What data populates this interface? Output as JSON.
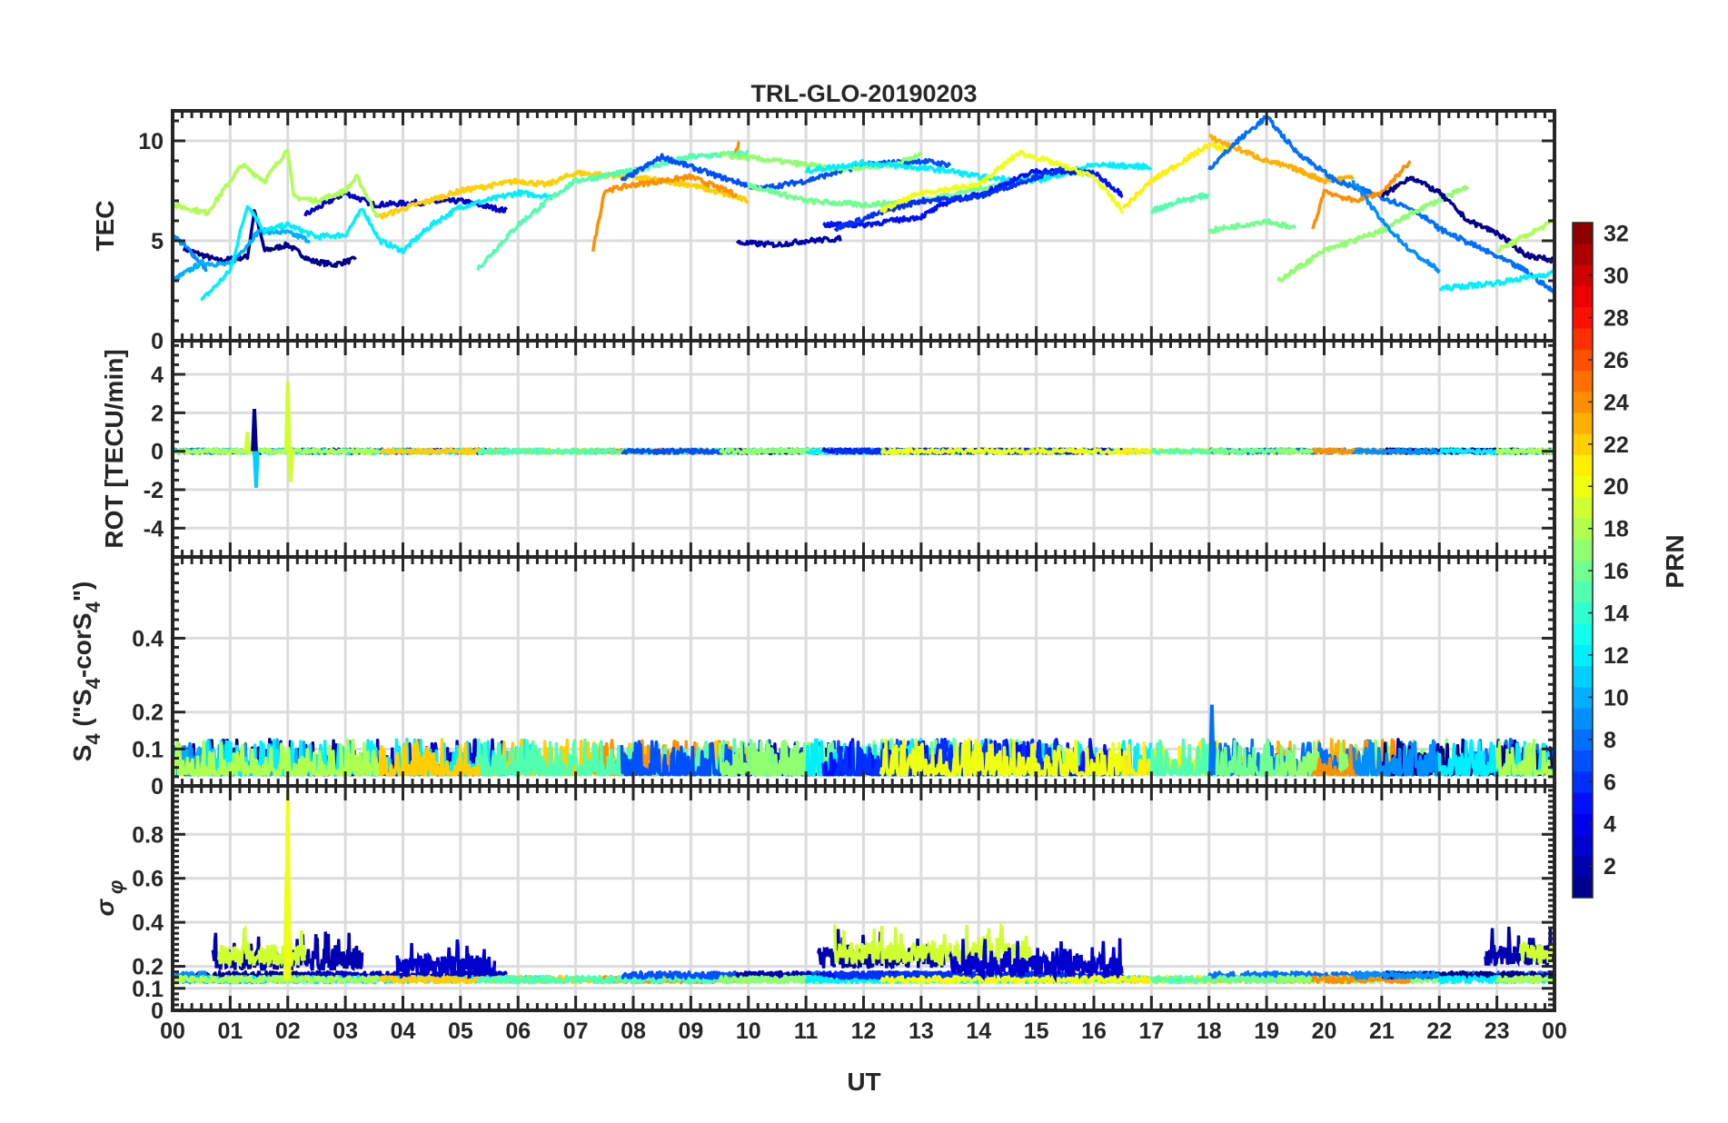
{
  "chart_data": {
    "type": "line",
    "title": "TRL-GLO-20190203",
    "xlabel": "UT",
    "xlim": [
      0,
      24
    ],
    "xticks": [
      "00",
      "01",
      "02",
      "03",
      "04",
      "05",
      "06",
      "07",
      "08",
      "09",
      "10",
      "11",
      "12",
      "13",
      "14",
      "15",
      "16",
      "17",
      "18",
      "19",
      "20",
      "21",
      "22",
      "23",
      "00"
    ],
    "grid": true,
    "colorbar": {
      "label": "PRN",
      "range": [
        1,
        32
      ],
      "levels": 32,
      "colormap": "jet",
      "ticks": [
        "2",
        "4",
        "6",
        "8",
        "10",
        "12",
        "14",
        "16",
        "18",
        "20",
        "22",
        "24",
        "26",
        "28",
        "30",
        "32"
      ],
      "placement": "right"
    },
    "panels": [
      {
        "id": "tec",
        "ylabel": "TEC",
        "ylim": [
          0,
          11.5
        ],
        "yticks": [
          {
            "v": 0,
            "t": "0"
          },
          {
            "v": 5,
            "t": "5"
          },
          {
            "v": 10,
            "t": "10"
          }
        ]
      },
      {
        "id": "rot",
        "ylabel": "ROT [TECU/min]",
        "ylim": [
          -5.5,
          5.75
        ],
        "yticks": [
          {
            "v": -4,
            "t": "-4"
          },
          {
            "v": -2,
            "t": "-2"
          },
          {
            "v": 0,
            "t": "0"
          },
          {
            "v": 2,
            "t": "2"
          },
          {
            "v": 4,
            "t": "4"
          }
        ],
        "noise": 0.12,
        "spikes": [
          {
            "x": 1.42,
            "amp": 2.2,
            "prn": 1
          },
          {
            "x": 1.45,
            "amp": -1.9,
            "prn": 11
          },
          {
            "x": 2.0,
            "amp": 3.6,
            "prn": 19
          },
          {
            "x": 2.05,
            "amp": -1.6,
            "prn": 19
          },
          {
            "x": 1.3,
            "amp": 1.0,
            "prn": 19
          }
        ]
      },
      {
        "id": "s4",
        "ylabel": "S4 (\"S4-corS4\")",
        "ylabel_main": "S",
        "ylabel_sub": "4",
        "ylabel_rest": " (\"S",
        "ylabel_sub2": "4",
        "ylabel_mid": "-corS",
        "ylabel_sub3": "4",
        "ylabel_end": "\")",
        "ylim": [
          0,
          0.62
        ],
        "yticks": [
          {
            "v": 0,
            "t": "0"
          },
          {
            "v": 0.1,
            "t": "0.1"
          },
          {
            "v": 0.2,
            "t": "0.2"
          },
          {
            "v": 0.4,
            "t": "0.4"
          }
        ],
        "base": 0.03,
        "noise": 0.06,
        "spikes": [
          {
            "x": 18.05,
            "amp": 0.22,
            "prn": 8
          }
        ]
      },
      {
        "id": "sigma",
        "ylabel": "σφ",
        "ylabel_main": "σ",
        "ylabel_sub": "φ",
        "ylim": [
          0,
          1.02
        ],
        "yticks": [
          {
            "v": 0,
            "t": "0"
          },
          {
            "v": 0.1,
            "t": "0.1"
          },
          {
            "v": 0.2,
            "t": "0.2"
          },
          {
            "v": 0.4,
            "t": "0.4"
          },
          {
            "v": 0.6,
            "t": "0.6"
          },
          {
            "v": 0.8,
            "t": "0.8"
          }
        ],
        "base": 0.14,
        "noise": 0.03,
        "spikes": [
          {
            "x": 1.98,
            "amp": 0.63,
            "prn": 19
          },
          {
            "x": 2.0,
            "amp": 1.0,
            "prn": 20
          }
        ],
        "bursts": [
          {
            "from": 0.7,
            "to": 3.3,
            "prn": 2,
            "level": 0.23
          },
          {
            "from": 0.8,
            "to": 2.3,
            "prn": 19,
            "level": 0.25
          },
          {
            "from": 3.9,
            "to": 5.6,
            "prn": 3,
            "level": 0.2
          },
          {
            "from": 11.2,
            "to": 13.4,
            "prn": 2,
            "level": 0.24
          },
          {
            "from": 11.5,
            "to": 14.9,
            "prn": 19,
            "level": 0.26
          },
          {
            "from": 13.5,
            "to": 16.5,
            "prn": 3,
            "level": 0.2
          },
          {
            "from": 22.8,
            "to": 24,
            "prn": 2,
            "level": 0.25
          },
          {
            "from": 23.4,
            "to": 24,
            "prn": 19,
            "level": 0.26
          }
        ]
      }
    ],
    "series": [
      {
        "prn": 1,
        "points": [
          [
            0.2,
            4.6
          ],
          [
            0.8,
            4
          ],
          [
            1.3,
            4.2
          ],
          [
            1.42,
            6.5
          ],
          [
            1.6,
            4.5
          ],
          [
            2,
            4.8
          ],
          [
            2.4,
            4
          ],
          [
            2.8,
            3.8
          ],
          [
            3.2,
            4.1
          ]
        ]
      },
      {
        "prn": 3,
        "points": [
          [
            2.3,
            6.3
          ],
          [
            3,
            7.4
          ],
          [
            3.5,
            6.8
          ],
          [
            4.2,
            6.9
          ],
          [
            5,
            7
          ],
          [
            5.8,
            6.5
          ]
        ]
      },
      {
        "prn": 9,
        "points": [
          [
            0,
            5.3
          ],
          [
            0.3,
            4.5
          ],
          [
            0.6,
            3.5
          ]
        ]
      },
      {
        "prn": 10,
        "points": [
          [
            0,
            3
          ],
          [
            0.5,
            3.9
          ],
          [
            1,
            3.8
          ],
          [
            1.5,
            5.5
          ],
          [
            2,
            5.4
          ],
          [
            2.4,
            5
          ]
        ]
      },
      {
        "prn": 12,
        "points": [
          [
            0.5,
            2
          ],
          [
            1,
            3.5
          ],
          [
            1.3,
            6.8
          ],
          [
            1.6,
            5.5
          ],
          [
            2,
            5.8
          ],
          [
            2.5,
            5.2
          ],
          [
            3,
            5.3
          ],
          [
            3.3,
            6.6
          ],
          [
            3.6,
            5
          ],
          [
            4,
            4.5
          ],
          [
            4.5,
            5.8
          ],
          [
            5,
            6.7
          ],
          [
            6,
            7.4
          ],
          [
            6.6,
            7.2
          ]
        ]
      },
      {
        "prn": 18,
        "points": [
          [
            0,
            6.8
          ],
          [
            0.6,
            6.4
          ],
          [
            1.2,
            8.8
          ],
          [
            1.6,
            8
          ],
          [
            2,
            9.6
          ],
          [
            2.1,
            7.2
          ],
          [
            2.5,
            7
          ],
          [
            3,
            7.5
          ],
          [
            3.2,
            8.2
          ],
          [
            3.6,
            6
          ]
        ]
      },
      {
        "prn": 22,
        "points": [
          [
            3.6,
            6.2
          ],
          [
            4,
            6.6
          ],
          [
            5,
            7.5
          ],
          [
            6,
            8
          ],
          [
            6.5,
            7.8
          ],
          [
            7,
            8.4
          ],
          [
            8,
            8.2
          ],
          [
            9,
            7.8
          ],
          [
            10,
            7
          ]
        ]
      },
      {
        "prn": 24,
        "points": [
          [
            7.3,
            4.5
          ],
          [
            7.5,
            7.5
          ],
          [
            8,
            7.8
          ],
          [
            9,
            8.2
          ],
          [
            9.8,
            7.3
          ]
        ]
      },
      {
        "prn": 24,
        "points": [
          [
            9.75,
            9.2
          ],
          [
            9.85,
            10
          ]
        ]
      },
      {
        "prn": 15,
        "points": [
          [
            5.3,
            3.6
          ],
          [
            6,
            5.8
          ],
          [
            6.6,
            7.2
          ],
          [
            7,
            8
          ],
          [
            8,
            8.5
          ],
          [
            9,
            9.2
          ],
          [
            10,
            9.4
          ]
        ]
      },
      {
        "prn": 7,
        "points": [
          [
            7.8,
            8
          ],
          [
            8.5,
            9.2
          ],
          [
            9.5,
            8.2
          ],
          [
            10.2,
            7.6
          ],
          [
            11,
            8
          ],
          [
            12,
            8.8
          ],
          [
            13,
            9
          ],
          [
            13.5,
            8.8
          ]
        ]
      },
      {
        "prn": 2,
        "points": [
          [
            9.8,
            4.9
          ],
          [
            10.5,
            4.8
          ],
          [
            11,
            5
          ],
          [
            11.6,
            5.1
          ]
        ]
      },
      {
        "prn": 16,
        "points": [
          [
            10,
            7.8
          ],
          [
            11,
            7
          ],
          [
            12,
            6.8
          ],
          [
            13,
            7
          ],
          [
            14,
            7.6
          ],
          [
            15,
            8.2
          ],
          [
            16,
            8.4
          ]
        ]
      },
      {
        "prn": 17,
        "points": [
          [
            9.5,
            9.3
          ],
          [
            10.5,
            9
          ],
          [
            11.5,
            8.6
          ],
          [
            12.5,
            8.8
          ],
          [
            13,
            9.3
          ]
        ]
      },
      {
        "prn": 12,
        "points": [
          [
            11,
            8.5
          ],
          [
            12,
            8.9
          ],
          [
            13.5,
            8.5
          ],
          [
            14,
            8.2
          ],
          [
            15,
            8
          ],
          [
            16,
            8.8
          ],
          [
            17,
            8.7
          ]
        ]
      },
      {
        "prn": 5,
        "points": [
          [
            11.3,
            5.8
          ],
          [
            12,
            5.8
          ],
          [
            12.5,
            6
          ],
          [
            13,
            6.2
          ],
          [
            13.5,
            7
          ],
          [
            14,
            7.3
          ],
          [
            15,
            8.5
          ],
          [
            16,
            8.4
          ],
          [
            16.5,
            7.3
          ]
        ]
      },
      {
        "prn": 6,
        "points": [
          [
            11.5,
            5.6
          ],
          [
            12.5,
            6.6
          ],
          [
            13,
            7
          ],
          [
            14,
            7.2
          ],
          [
            15,
            8.2
          ],
          [
            15.5,
            8.6
          ]
        ]
      },
      {
        "prn": 20,
        "points": [
          [
            12.3,
            6.5
          ],
          [
            13,
            7.4
          ],
          [
            14,
            7.8
          ],
          [
            14.7,
            9.4
          ],
          [
            15.2,
            9
          ],
          [
            16,
            8.2
          ],
          [
            16.5,
            6.5
          ]
        ]
      },
      {
        "prn": 21,
        "points": [
          [
            16.5,
            6.6
          ],
          [
            17,
            8
          ],
          [
            18,
            9.8
          ],
          [
            18.4,
            9.5
          ]
        ]
      },
      {
        "prn": 23,
        "points": [
          [
            18,
            10.2
          ],
          [
            18.5,
            9.6
          ],
          [
            19,
            9
          ],
          [
            19.5,
            8.6
          ],
          [
            20,
            8
          ],
          [
            20.5,
            8.2
          ]
        ]
      },
      {
        "prn": 8,
        "points": [
          [
            18,
            8.6
          ],
          [
            18.5,
            10
          ],
          [
            19,
            11.2
          ],
          [
            19.5,
            9.5
          ],
          [
            20.2,
            8
          ],
          [
            21,
            7.2
          ],
          [
            21.6,
            6.5
          ],
          [
            22,
            5.6
          ],
          [
            22.8,
            4.5
          ],
          [
            23.5,
            3.5
          ],
          [
            24,
            2.4
          ]
        ]
      },
      {
        "prn": 15,
        "points": [
          [
            17,
            6.5
          ],
          [
            17.5,
            7
          ],
          [
            18,
            7.3
          ]
        ]
      },
      {
        "prn": 16,
        "points": [
          [
            18,
            5.5
          ],
          [
            19,
            6
          ],
          [
            19.5,
            5.6
          ]
        ]
      },
      {
        "prn": 17,
        "points": [
          [
            19.2,
            3
          ],
          [
            20,
            4.5
          ],
          [
            21,
            5.5
          ],
          [
            21.6,
            6.5
          ],
          [
            22.5,
            7.7
          ]
        ]
      },
      {
        "prn": 24,
        "points": [
          [
            19.8,
            5.5
          ],
          [
            20,
            7.5
          ],
          [
            20.5,
            7
          ],
          [
            21,
            7.4
          ],
          [
            21.5,
            9
          ]
        ]
      },
      {
        "prn": 1,
        "points": [
          [
            21,
            7.2
          ],
          [
            21.5,
            8.2
          ],
          [
            22,
            7.4
          ],
          [
            22.5,
            6
          ],
          [
            23,
            5.4
          ],
          [
            23.5,
            4.3
          ],
          [
            24,
            4
          ]
        ]
      },
      {
        "prn": 9,
        "points": [
          [
            20.5,
            8
          ],
          [
            21,
            6
          ],
          [
            21.5,
            4.5
          ],
          [
            22,
            3.5
          ]
        ]
      },
      {
        "prn": 12,
        "points": [
          [
            22,
            2.6
          ],
          [
            23,
            2.9
          ],
          [
            24,
            3.4
          ]
        ]
      },
      {
        "prn": 18,
        "points": [
          [
            23,
            4.5
          ],
          [
            24,
            6
          ]
        ]
      }
    ]
  }
}
